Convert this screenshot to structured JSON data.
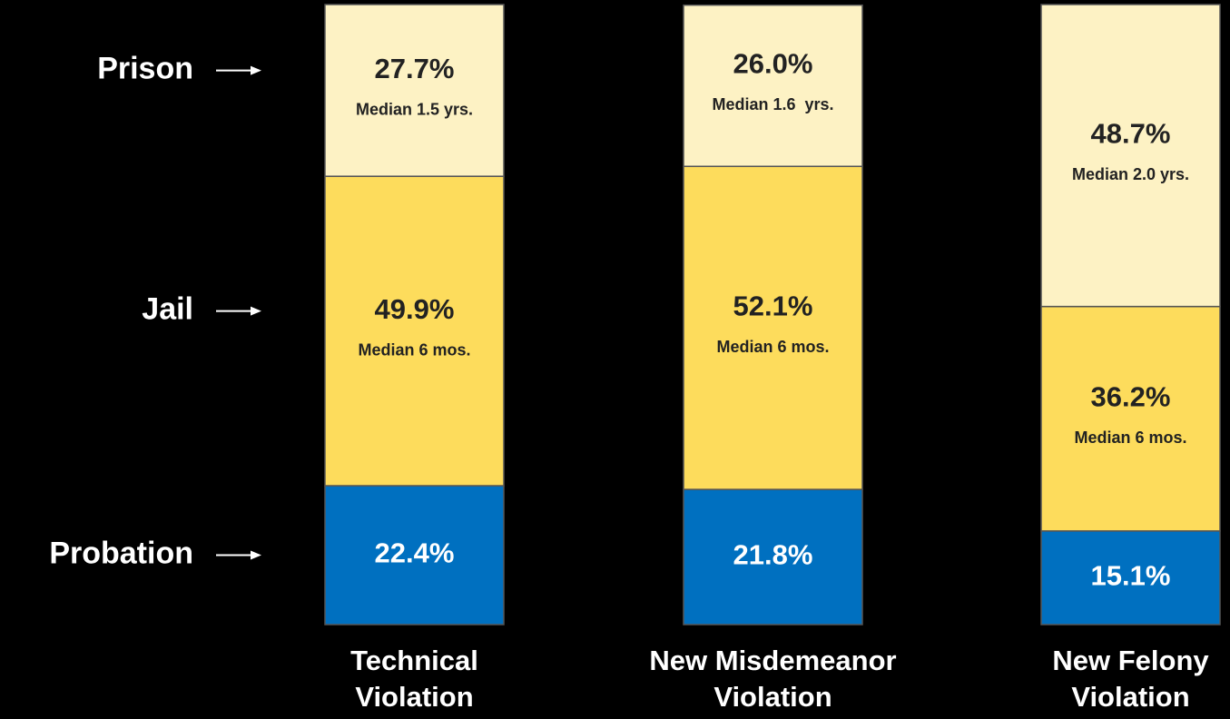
{
  "chart_data": {
    "type": "stacked_bar",
    "categories": [
      "Technical Violation",
      "New Misdemeanor Violation",
      "New Felony Violation"
    ],
    "ylim": [
      0,
      100
    ],
    "series": [
      {
        "name": "Probation",
        "color": "#0070c0",
        "values": [
          22.4,
          21.8,
          15.1
        ],
        "value_labels": [
          "22.4%",
          "21.8%",
          "15.1%"
        ]
      },
      {
        "name": "Jail",
        "color": "#fddc5c",
        "values": [
          49.9,
          52.1,
          36.2
        ],
        "value_labels": [
          "49.9%",
          "52.1%",
          "36.2%"
        ],
        "medians": [
          "Median 6 mos.",
          "Median 6 mos.",
          "Median 6 mos."
        ]
      },
      {
        "name": "Prison",
        "color": "#fdf2c4",
        "values": [
          27.7,
          26.0,
          48.7
        ],
        "value_labels": [
          "27.7%",
          "26.0%",
          "48.7%"
        ],
        "medians": [
          "Median 1.5 yrs.",
          "Median 1.6  yrs.",
          "Median 2.0 yrs."
        ]
      }
    ]
  }
}
